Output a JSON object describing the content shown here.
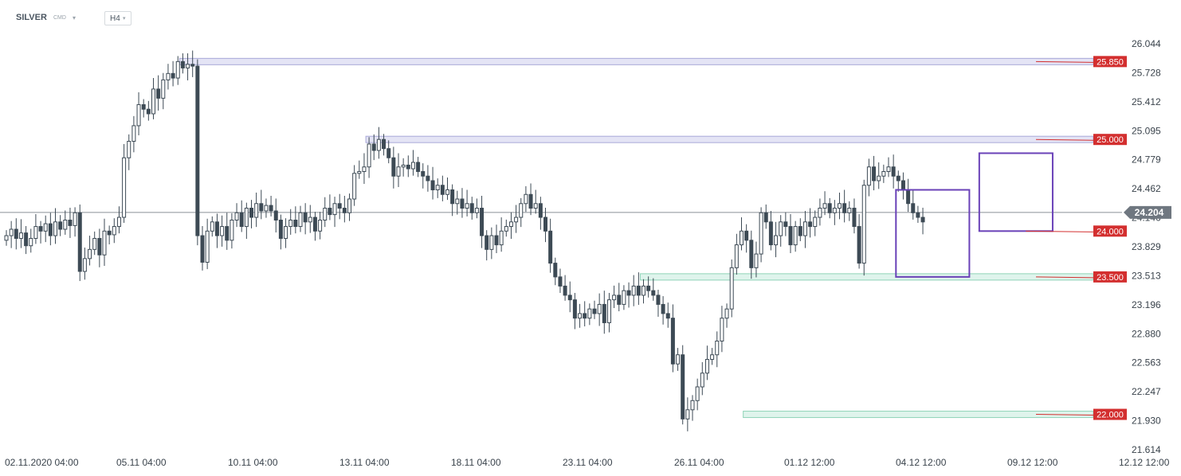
{
  "header": {
    "symbol": "SILVER",
    "exchange": "CMD",
    "timeframe": "H4"
  },
  "colors": {
    "up_candle": "#ffffff",
    "down_candle": "#3d4a55",
    "wick": "#3d4a55",
    "resistance_zone": "#e4e4f5",
    "support_zone": "#dff4ec",
    "level_label_bg": "#d32f2f",
    "current_price_bg": "#6f7780",
    "box_stroke": "#6a42b8"
  },
  "chart_data": {
    "type": "candlestick",
    "instrument": "SILVER",
    "timeframe": "H4",
    "ylim": [
      21.614,
      26.044
    ],
    "y_ticks": [
      "26.044",
      "25.728",
      "25.412",
      "25.095",
      "24.779",
      "24.462",
      "24.146",
      "23.829",
      "23.513",
      "23.196",
      "22.880",
      "22.563",
      "22.247",
      "21.930",
      "21.614"
    ],
    "x_ticks": [
      "02.11.2020  04:00",
      "05.11  04:00",
      "10.11  04:00",
      "13.11  04:00",
      "18.11  04:00",
      "23.11  04:00",
      "26.11  04:00",
      "01.12  12:00",
      "04.12  12:00",
      "09.12  12:00",
      "12.12  12:00"
    ],
    "current_price": "24.204",
    "levels": [
      {
        "label": "25.850",
        "value": 25.85,
        "kind": "resistance",
        "from_bar": 36
      },
      {
        "label": "25.000",
        "value": 25.0,
        "kind": "resistance",
        "from_bar": 74
      },
      {
        "label": "24.000",
        "value": 24.0,
        "kind": "box-level",
        "from_bar": 208
      },
      {
        "label": "23.500",
        "value": 23.5,
        "kind": "support",
        "from_bar": 130
      },
      {
        "label": "22.000",
        "value": 22.0,
        "kind": "support",
        "from_bar": 151
      }
    ],
    "boxes": [
      {
        "from_bar": 182,
        "to_bar": 196,
        "high": 24.45,
        "low": 23.5
      },
      {
        "from_bar": 199,
        "to_bar": 213,
        "high": 24.85,
        "low": 24.0
      }
    ],
    "closes": [
      23.95,
      24.02,
      23.92,
      23.98,
      23.84,
      23.92,
      24.05,
      24.0,
      24.08,
      23.95,
      24.1,
      24.02,
      24.12,
      24.06,
      24.2,
      23.56,
      23.7,
      23.8,
      23.92,
      23.74,
      24.0,
      23.96,
      24.05,
      24.15,
      24.8,
      24.98,
      25.15,
      25.38,
      25.33,
      25.28,
      25.55,
      25.45,
      25.65,
      25.72,
      25.67,
      25.85,
      25.78,
      25.82,
      25.8,
      23.95,
      23.66,
      24.0,
      24.1,
      23.95,
      24.05,
      23.9,
      24.12,
      24.2,
      24.05,
      24.25,
      24.15,
      24.3,
      24.22,
      24.28,
      24.22,
      24.12,
      23.92,
      24.05,
      24.12,
      24.05,
      24.2,
      24.1,
      24.15,
      24.0,
      24.12,
      24.25,
      24.18,
      24.3,
      24.25,
      24.2,
      24.35,
      24.63,
      24.65,
      24.7,
      24.95,
      24.88,
      25.0,
      24.9,
      24.8,
      24.6,
      24.7,
      24.72,
      24.68,
      24.75,
      24.65,
      24.6,
      24.55,
      24.45,
      24.5,
      24.4,
      24.45,
      24.3,
      24.35,
      24.25,
      24.3,
      24.2,
      24.25,
      23.95,
      23.8,
      23.95,
      23.85,
      24.0,
      24.05,
      24.1,
      24.15,
      24.3,
      24.4,
      24.25,
      24.3,
      24.15,
      24.0,
      23.65,
      23.5,
      23.4,
      23.3,
      23.25,
      23.05,
      23.1,
      23.05,
      23.15,
      23.1,
      23.2,
      23.0,
      23.25,
      23.3,
      23.2,
      23.35,
      23.3,
      23.4,
      23.3,
      23.4,
      23.35,
      23.3,
      23.2,
      23.1,
      23.05,
      22.55,
      22.65,
      21.95,
      22.05,
      22.15,
      22.3,
      22.45,
      22.6,
      22.65,
      22.8,
      23.05,
      23.15,
      23.6,
      23.85,
      24.0,
      23.9,
      23.6,
      23.75,
      24.2,
      24.1,
      23.85,
      23.95,
      24.1,
      24.05,
      23.85,
      24.05,
      23.95,
      24.1,
      24.05,
      24.15,
      24.25,
      24.3,
      24.2,
      24.25,
      24.3,
      24.2,
      24.25,
      24.05,
      23.65,
      24.5,
      24.7,
      24.55,
      24.6,
      24.65,
      24.7,
      24.6,
      24.55,
      24.45,
      24.3,
      24.2,
      24.15,
      24.1
    ],
    "levels_text": "Horizontal zones at 25.850, 25.000, 23.500 and 22.000"
  }
}
